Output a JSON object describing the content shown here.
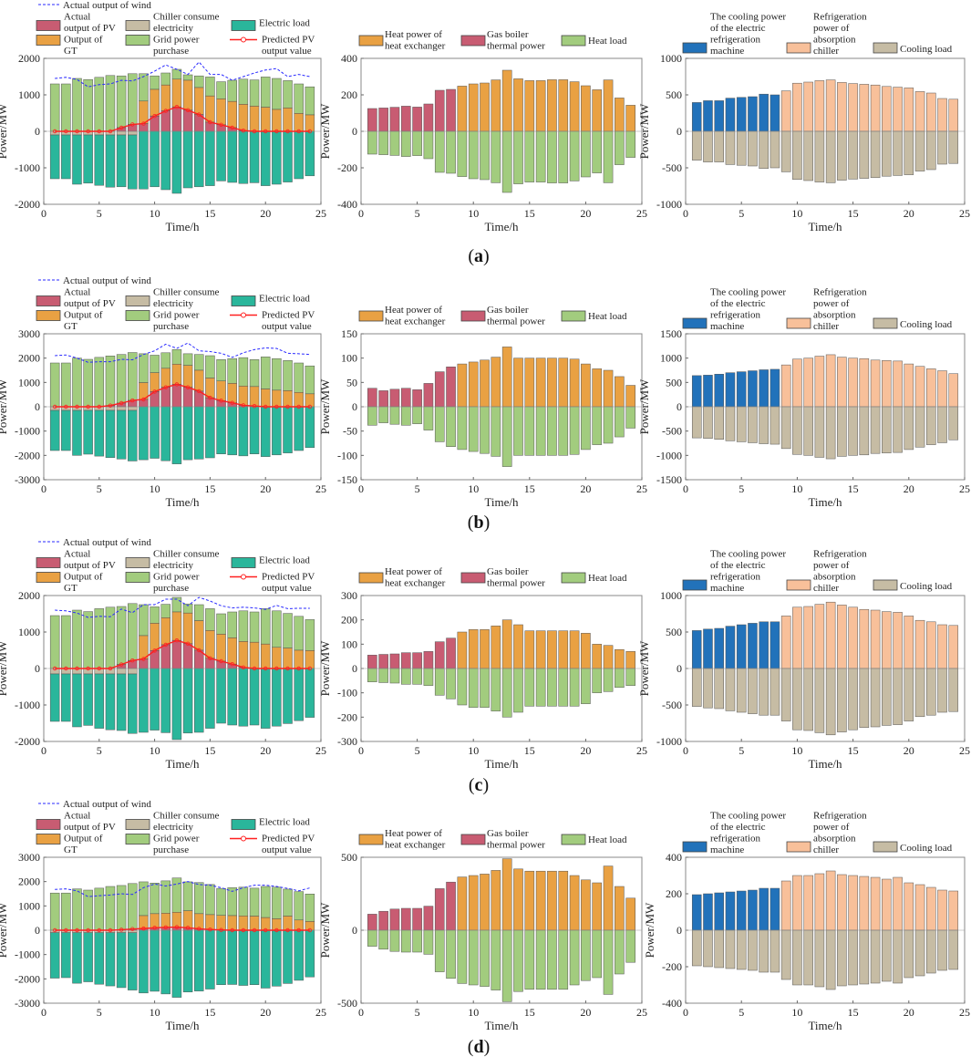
{
  "colors": {
    "pv": "#c85c72",
    "chiller": "#c6bca4",
    "eload": "#2ab69b",
    "gt": "#e9a143",
    "grid": "#a2cc7e",
    "wind": "#2a2aff",
    "pred": "#ff2020",
    "hx": "#e9a143",
    "boiler": "#c85c72",
    "hload": "#a2cc7e",
    "ec": "#2272ba",
    "abs": "#f8c09a",
    "cload": "#c6bca4"
  },
  "labels": {
    "time": "Time/h",
    "power": "Power/MW",
    "wind": [
      "Actual output of wind"
    ],
    "pv": [
      "Actual",
      "output of PV"
    ],
    "chiller": [
      "Chiller consume",
      "electricity"
    ],
    "eload": [
      "Electric load"
    ],
    "gt": [
      "Output of",
      "GT"
    ],
    "grid": [
      "Grid power",
      "purchase"
    ],
    "pred": [
      "Predicted PV",
      "output value"
    ],
    "hx": [
      "Heat power of",
      "heat exchanger"
    ],
    "boiler": [
      "Gas boiler",
      "thermal power"
    ],
    "hload": [
      "Heat load"
    ],
    "ec": [
      "The cooling power",
      "of the electric",
      "refrigeration",
      "machine"
    ],
    "abs": [
      "Refrigeration",
      "power of",
      "absorption",
      "chiller"
    ],
    "cload": [
      "Cooling load"
    ]
  },
  "captions": [
    "a",
    "b",
    "c",
    "d"
  ],
  "chart_data": [
    {
      "panel": "a",
      "type": "bar",
      "x": [
        1,
        2,
        3,
        4,
        5,
        6,
        7,
        8,
        9,
        10,
        11,
        12,
        13,
        14,
        15,
        16,
        17,
        18,
        19,
        20,
        21,
        22,
        23,
        24
      ],
      "electric": {
        "ylim": [
          -2000,
          2000
        ],
        "yticks": [
          -2000,
          -1000,
          0,
          1000,
          2000
        ],
        "pv": [
          0,
          0,
          0,
          0,
          0,
          0,
          100,
          190,
          210,
          420,
          560,
          670,
          580,
          460,
          250,
          180,
          100,
          20,
          0,
          0,
          0,
          0,
          0,
          0
        ],
        "pv_gt_top": [
          0,
          0,
          0,
          0,
          0,
          0,
          100,
          190,
          830,
          1150,
          1270,
          1430,
          1400,
          1200,
          970,
          890,
          820,
          740,
          690,
          660,
          600,
          640,
          490,
          450
        ],
        "total_supply": [
          1300,
          1300,
          1450,
          1420,
          1480,
          1530,
          1520,
          1580,
          1580,
          1520,
          1600,
          1700,
          1550,
          1520,
          1490,
          1360,
          1400,
          1430,
          1410,
          1490,
          1450,
          1390,
          1300,
          1220
        ],
        "chiller": [
          100,
          100,
          100,
          100,
          100,
          100,
          100,
          100,
          0,
          0,
          0,
          0,
          0,
          0,
          0,
          0,
          0,
          0,
          0,
          0,
          0,
          0,
          0,
          0
        ],
        "load": [
          1300,
          1300,
          1450,
          1420,
          1480,
          1530,
          1520,
          1580,
          1580,
          1520,
          1600,
          1700,
          1550,
          1520,
          1490,
          1360,
          1400,
          1430,
          1410,
          1490,
          1450,
          1390,
          1300,
          1220
        ],
        "wind": [
          1450,
          1480,
          1420,
          1220,
          1280,
          1300,
          1400,
          1380,
          1500,
          1650,
          1820,
          1700,
          1560,
          1900,
          1560,
          1560,
          1400,
          1500,
          1600,
          1680,
          1720,
          1500,
          1560,
          1500
        ]
      },
      "heat": {
        "ylim": [
          -400,
          400
        ],
        "yticks": [
          -400,
          -200,
          0,
          200,
          400
        ],
        "supply": [
          125,
          128,
          132,
          138,
          133,
          150,
          225,
          230,
          248,
          260,
          265,
          282,
          335,
          288,
          278,
          278,
          283,
          283,
          272,
          250,
          228,
          282,
          183,
          143
        ]
      },
      "cooling": {
        "ylim": [
          -1000,
          1000
        ],
        "yticks": [
          -1000,
          -500,
          0,
          500,
          1000
        ],
        "supply": [
          395,
          420,
          420,
          455,
          465,
          475,
          510,
          500,
          555,
          660,
          675,
          695,
          705,
          670,
          655,
          645,
          635,
          615,
          605,
          595,
          545,
          525,
          450,
          440
        ]
      }
    },
    {
      "panel": "b",
      "type": "bar",
      "x": [
        1,
        2,
        3,
        4,
        5,
        6,
        7,
        8,
        9,
        10,
        11,
        12,
        13,
        14,
        15,
        16,
        17,
        18,
        19,
        20,
        21,
        22,
        23,
        24
      ],
      "electric": {
        "ylim": [
          -3000,
          3000
        ],
        "yticks": [
          -3000,
          -2000,
          -1000,
          0,
          1000,
          2000,
          3000
        ],
        "pv": [
          0,
          0,
          0,
          0,
          0,
          50,
          150,
          260,
          300,
          620,
          800,
          920,
          800,
          640,
          370,
          250,
          160,
          60,
          30,
          0,
          0,
          0,
          0,
          0
        ],
        "pv_gt_top": [
          0,
          0,
          0,
          0,
          0,
          50,
          150,
          260,
          990,
          1400,
          1580,
          1750,
          1700,
          1500,
          1180,
          1060,
          960,
          850,
          830,
          730,
          680,
          660,
          590,
          530
        ],
        "total_supply": [
          1800,
          1800,
          2000,
          1950,
          2030,
          2090,
          2150,
          2230,
          2180,
          2120,
          2220,
          2350,
          2180,
          2150,
          2100,
          1940,
          1980,
          2020,
          1940,
          2050,
          1980,
          1900,
          1800,
          1680
        ],
        "chiller": [
          150,
          150,
          150,
          150,
          150,
          150,
          150,
          150,
          0,
          0,
          0,
          0,
          0,
          0,
          0,
          0,
          0,
          0,
          0,
          0,
          0,
          0,
          0,
          0
        ],
        "load": [
          1800,
          1800,
          2000,
          1950,
          2030,
          2090,
          2150,
          2230,
          2180,
          2120,
          2220,
          2350,
          2180,
          2150,
          2100,
          1940,
          1980,
          2020,
          1940,
          2050,
          1980,
          1900,
          1800,
          1680
        ],
        "wind": [
          2100,
          2130,
          2000,
          1830,
          1850,
          1850,
          1950,
          1930,
          2150,
          2300,
          2570,
          2400,
          2620,
          2300,
          2270,
          2200,
          2030,
          2220,
          2350,
          2420,
          2400,
          2200,
          2180,
          2150
        ]
      },
      "heat": {
        "ylim": [
          -150,
          150
        ],
        "yticks": [
          -150,
          -100,
          -50,
          0,
          50,
          100,
          150
        ],
        "supply": [
          38,
          33,
          36,
          38,
          35,
          48,
          72,
          82,
          88,
          92,
          96,
          102,
          123,
          100,
          100,
          100,
          100,
          100,
          98,
          88,
          78,
          75,
          62,
          44
        ]
      },
      "cooling": {
        "ylim": [
          -1500,
          1500
        ],
        "yticks": [
          -1500,
          -1000,
          -500,
          0,
          500,
          1000,
          1500
        ],
        "supply": [
          640,
          650,
          670,
          700,
          720,
          740,
          760,
          770,
          860,
          980,
          1000,
          1040,
          1070,
          1020,
          1000,
          990,
          960,
          950,
          940,
          880,
          830,
          780,
          740,
          680
        ]
      }
    },
    {
      "panel": "c",
      "type": "bar",
      "x": [
        1,
        2,
        3,
        4,
        5,
        6,
        7,
        8,
        9,
        10,
        11,
        12,
        13,
        14,
        15,
        16,
        17,
        18,
        19,
        20,
        21,
        22,
        23,
        24
      ],
      "electric": {
        "ylim": [
          -2000,
          2000
        ],
        "yticks": [
          -2000,
          -1000,
          0,
          1000,
          2000
        ],
        "pv": [
          0,
          0,
          0,
          0,
          0,
          0,
          110,
          220,
          260,
          490,
          650,
          770,
          680,
          500,
          280,
          200,
          120,
          30,
          0,
          0,
          0,
          0,
          0,
          0
        ],
        "pv_gt_top": [
          0,
          0,
          0,
          0,
          0,
          0,
          110,
          220,
          900,
          1240,
          1390,
          1550,
          1520,
          1310,
          1040,
          940,
          840,
          740,
          720,
          670,
          580,
          560,
          500,
          490
        ],
        "total_supply": [
          1450,
          1450,
          1600,
          1560,
          1640,
          1680,
          1700,
          1780,
          1750,
          1690,
          1760,
          1950,
          1770,
          1750,
          1640,
          1500,
          1550,
          1580,
          1550,
          1640,
          1580,
          1510,
          1430,
          1340
        ],
        "chiller": [
          150,
          150,
          150,
          150,
          150,
          150,
          150,
          150,
          0,
          0,
          0,
          0,
          0,
          0,
          0,
          0,
          0,
          0,
          0,
          0,
          0,
          0,
          0,
          0
        ],
        "load": [
          1450,
          1450,
          1600,
          1560,
          1640,
          1680,
          1700,
          1780,
          1750,
          1690,
          1760,
          1950,
          1770,
          1750,
          1640,
          1500,
          1550,
          1580,
          1550,
          1640,
          1580,
          1510,
          1430,
          1340
        ],
        "wind": [
          1600,
          1580,
          1520,
          1400,
          1430,
          1420,
          1630,
          1530,
          1750,
          1750,
          1900,
          1900,
          1720,
          1950,
          1850,
          1720,
          1660,
          1680,
          1660,
          1620,
          1730,
          1640,
          1650,
          1650
        ]
      },
      "heat": {
        "ylim": [
          -300,
          300
        ],
        "yticks": [
          -300,
          -200,
          -100,
          0,
          100,
          200,
          300
        ],
        "supply": [
          55,
          58,
          60,
          65,
          65,
          70,
          110,
          125,
          150,
          160,
          160,
          175,
          200,
          180,
          155,
          155,
          155,
          155,
          155,
          145,
          100,
          95,
          78,
          70
        ]
      },
      "cooling": {
        "ylim": [
          -1000,
          1000
        ],
        "yticks": [
          -1000,
          -500,
          0,
          500,
          1000
        ],
        "supply": [
          520,
          540,
          550,
          580,
          600,
          620,
          640,
          640,
          720,
          840,
          850,
          880,
          910,
          870,
          840,
          810,
          800,
          780,
          770,
          720,
          660,
          640,
          600,
          590
        ]
      }
    },
    {
      "panel": "d",
      "type": "bar",
      "x": [
        1,
        2,
        3,
        4,
        5,
        6,
        7,
        8,
        9,
        10,
        11,
        12,
        13,
        14,
        15,
        16,
        17,
        18,
        19,
        20,
        21,
        22,
        23,
        24
      ],
      "electric": {
        "ylim": [
          -3000,
          3000
        ],
        "yticks": [
          -3000,
          -2000,
          -1000,
          0,
          1000,
          2000,
          3000
        ],
        "pv": [
          0,
          0,
          0,
          0,
          0,
          0,
          20,
          50,
          70,
          100,
          120,
          130,
          100,
          60,
          30,
          10,
          0,
          0,
          0,
          0,
          0,
          0,
          0,
          0
        ],
        "pv_gt_top": [
          0,
          0,
          0,
          0,
          0,
          0,
          20,
          50,
          600,
          680,
          700,
          740,
          800,
          680,
          640,
          610,
          600,
          590,
          580,
          520,
          470,
          580,
          420,
          360
        ],
        "total_supply": [
          1530,
          1530,
          1700,
          1650,
          1730,
          1800,
          1840,
          1920,
          1990,
          1940,
          2030,
          2150,
          1990,
          1960,
          1880,
          1720,
          1750,
          1770,
          1730,
          1800,
          1770,
          1690,
          1590,
          1490
        ],
        "chiller": [
          100,
          100,
          100,
          100,
          100,
          100,
          100,
          100,
          0,
          0,
          0,
          0,
          0,
          0,
          0,
          0,
          0,
          0,
          0,
          0,
          0,
          0,
          0,
          0
        ],
        "load": [
          1970,
          1950,
          2180,
          2120,
          2220,
          2290,
          2360,
          2460,
          2580,
          2510,
          2620,
          2760,
          2540,
          2500,
          2420,
          2240,
          2230,
          2270,
          2240,
          2380,
          2300,
          2190,
          2060,
          1920
        ],
        "wind": [
          1680,
          1700,
          1620,
          1380,
          1420,
          1450,
          1500,
          1470,
          1750,
          1900,
          1820,
          1900,
          2000,
          1880,
          1850,
          1750,
          1600,
          1750,
          1850,
          1850,
          1800,
          1720,
          1620,
          1740
        ]
      },
      "heat": {
        "ylim": [
          -500,
          500
        ],
        "yticks": [
          -500,
          0,
          500
        ],
        "supply": [
          110,
          130,
          145,
          150,
          150,
          165,
          285,
          330,
          365,
          375,
          385,
          410,
          490,
          420,
          405,
          405,
          405,
          405,
          375,
          345,
          325,
          440,
          300,
          220
        ]
      },
      "cooling": {
        "ylim": [
          -400,
          400
        ],
        "yticks": [
          -400,
          -200,
          0,
          200,
          400
        ],
        "supply": [
          195,
          200,
          205,
          210,
          215,
          220,
          230,
          230,
          270,
          300,
          300,
          310,
          325,
          305,
          300,
          295,
          290,
          280,
          290,
          260,
          250,
          235,
          220,
          215
        ]
      }
    }
  ],
  "xaxis": {
    "xlim": [
      0,
      25
    ],
    "xticks": [
      0,
      5,
      10,
      15,
      20,
      25
    ]
  },
  "switch_hour": 8
}
